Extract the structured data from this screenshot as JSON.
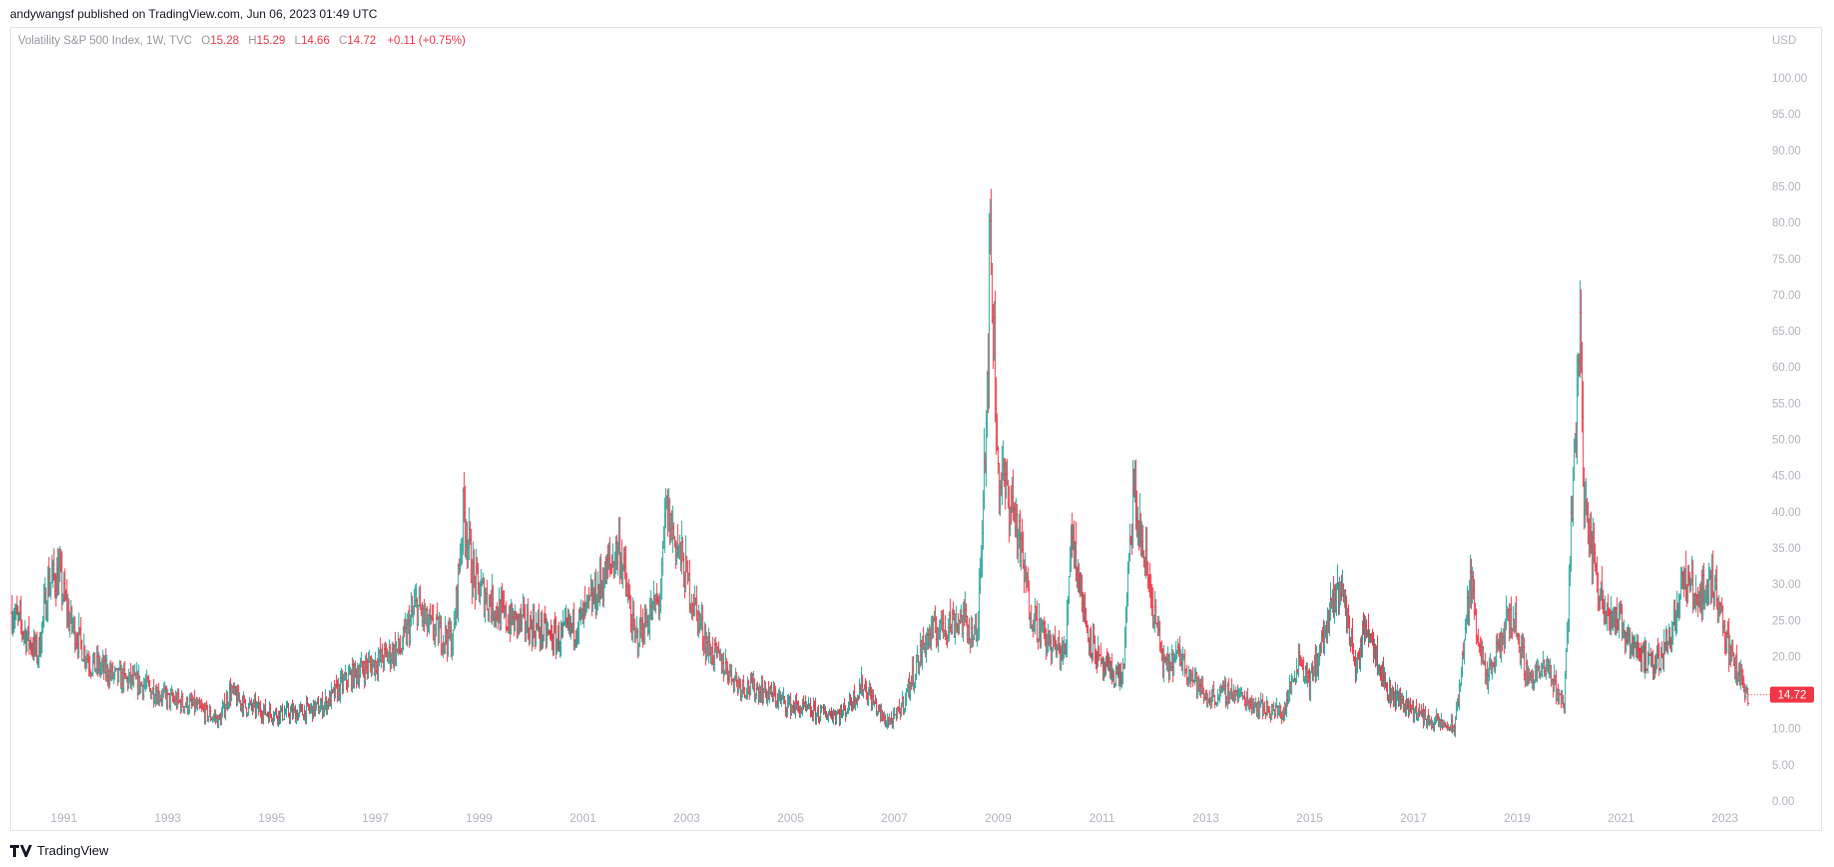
{
  "header": {
    "publish_line": "andywangsf published on TradingView.com, Jun 06, 2023 01:49 UTC"
  },
  "legend": {
    "symbol": "Volatility S&P 500 Index, 1W, TVC",
    "open_label": "O",
    "open": "15.28",
    "high_label": "H",
    "high": "15.29",
    "low_label": "L",
    "low": "14.66",
    "close_label": "C",
    "close": "14.72",
    "change": "+0.11 (+0.75%)"
  },
  "footer": {
    "brand": "TradingView"
  },
  "colors": {
    "up": "#26a69a",
    "down": "#f23645",
    "grid_text": "#b2b5be",
    "last_price_bg": "#f23645"
  },
  "chart_data": {
    "type": "ohlc",
    "currency": "USD",
    "last_price": "14.72",
    "y_ticks": [
      "0.00",
      "5.00",
      "10.00",
      "15.00",
      "20.00",
      "25.00",
      "30.00",
      "35.00",
      "40.00",
      "45.00",
      "50.00",
      "55.00",
      "60.00",
      "65.00",
      "70.00",
      "75.00",
      "80.00",
      "85.00",
      "90.00",
      "95.00",
      "100.00"
    ],
    "ylim": [
      0,
      100
    ],
    "x_ticks": [
      "1991",
      "1993",
      "1995",
      "1997",
      "1999",
      "2001",
      "2003",
      "2005",
      "2007",
      "2009",
      "2011",
      "2013",
      "2015",
      "2017",
      "2019",
      "2021",
      "2023"
    ],
    "xlim": [
      1990.0,
      2023.6
    ],
    "series": [
      {
        "points": [
          [
            1990.0,
            26
          ],
          [
            1990.5,
            20
          ],
          [
            1990.7,
            30
          ],
          [
            1990.9,
            31
          ],
          [
            1991.1,
            25
          ],
          [
            1991.5,
            19
          ],
          [
            1992.0,
            17
          ],
          [
            1992.5,
            16
          ],
          [
            1993.0,
            14
          ],
          [
            1993.5,
            13
          ],
          [
            1994.0,
            11
          ],
          [
            1994.2,
            15
          ],
          [
            1994.5,
            13
          ],
          [
            1995.0,
            12
          ],
          [
            1995.5,
            12
          ],
          [
            1996.0,
            13
          ],
          [
            1996.5,
            17
          ],
          [
            1997.0,
            19
          ],
          [
            1997.5,
            21
          ],
          [
            1997.8,
            27
          ],
          [
            1998.0,
            24
          ],
          [
            1998.5,
            22
          ],
          [
            1998.7,
            40
          ],
          [
            1998.9,
            30
          ],
          [
            1999.5,
            25
          ],
          [
            2000.0,
            24
          ],
          [
            2000.5,
            22
          ],
          [
            2001.0,
            25
          ],
          [
            2001.3,
            29
          ],
          [
            2001.7,
            35
          ],
          [
            2002.0,
            22
          ],
          [
            2002.5,
            28
          ],
          [
            2002.6,
            40
          ],
          [
            2002.9,
            33
          ],
          [
            2003.1,
            28
          ],
          [
            2003.4,
            21
          ],
          [
            2003.8,
            18
          ],
          [
            2004.0,
            16
          ],
          [
            2004.5,
            15
          ],
          [
            2005.0,
            13
          ],
          [
            2005.5,
            12
          ],
          [
            2006.0,
            12
          ],
          [
            2006.4,
            16
          ],
          [
            2006.8,
            11
          ],
          [
            2007.0,
            11
          ],
          [
            2007.2,
            14
          ],
          [
            2007.6,
            22
          ],
          [
            2007.9,
            24
          ],
          [
            2008.3,
            25
          ],
          [
            2008.6,
            22
          ],
          [
            2008.8,
            60
          ],
          [
            2008.85,
            78
          ],
          [
            2009.0,
            45
          ],
          [
            2009.3,
            40
          ],
          [
            2009.6,
            27
          ],
          [
            2009.9,
            22
          ],
          [
            2010.3,
            20
          ],
          [
            2010.4,
            38
          ],
          [
            2010.7,
            24
          ],
          [
            2011.0,
            18
          ],
          [
            2011.4,
            17
          ],
          [
            2011.6,
            42
          ],
          [
            2011.9,
            30
          ],
          [
            2012.2,
            18
          ],
          [
            2012.5,
            20
          ],
          [
            2013.0,
            14
          ],
          [
            2013.5,
            15
          ],
          [
            2014.0,
            13
          ],
          [
            2014.5,
            12
          ],
          [
            2014.8,
            20
          ],
          [
            2015.0,
            16
          ],
          [
            2015.6,
            30
          ],
          [
            2015.9,
            18
          ],
          [
            2016.1,
            25
          ],
          [
            2016.5,
            15
          ],
          [
            2016.9,
            13
          ],
          [
            2017.3,
            11
          ],
          [
            2017.8,
            10
          ],
          [
            2018.1,
            30
          ],
          [
            2018.4,
            16
          ],
          [
            2018.9,
            26
          ],
          [
            2019.2,
            17
          ],
          [
            2019.6,
            18
          ],
          [
            2019.9,
            13
          ],
          [
            2020.2,
            65
          ],
          [
            2020.3,
            40
          ],
          [
            2020.6,
            28
          ],
          [
            2020.9,
            25
          ],
          [
            2021.2,
            22
          ],
          [
            2021.6,
            18
          ],
          [
            2021.9,
            22
          ],
          [
            2022.2,
            30
          ],
          [
            2022.5,
            28
          ],
          [
            2022.8,
            30
          ],
          [
            2023.1,
            20
          ],
          [
            2023.3,
            17
          ],
          [
            2023.45,
            14.72
          ]
        ]
      }
    ]
  }
}
